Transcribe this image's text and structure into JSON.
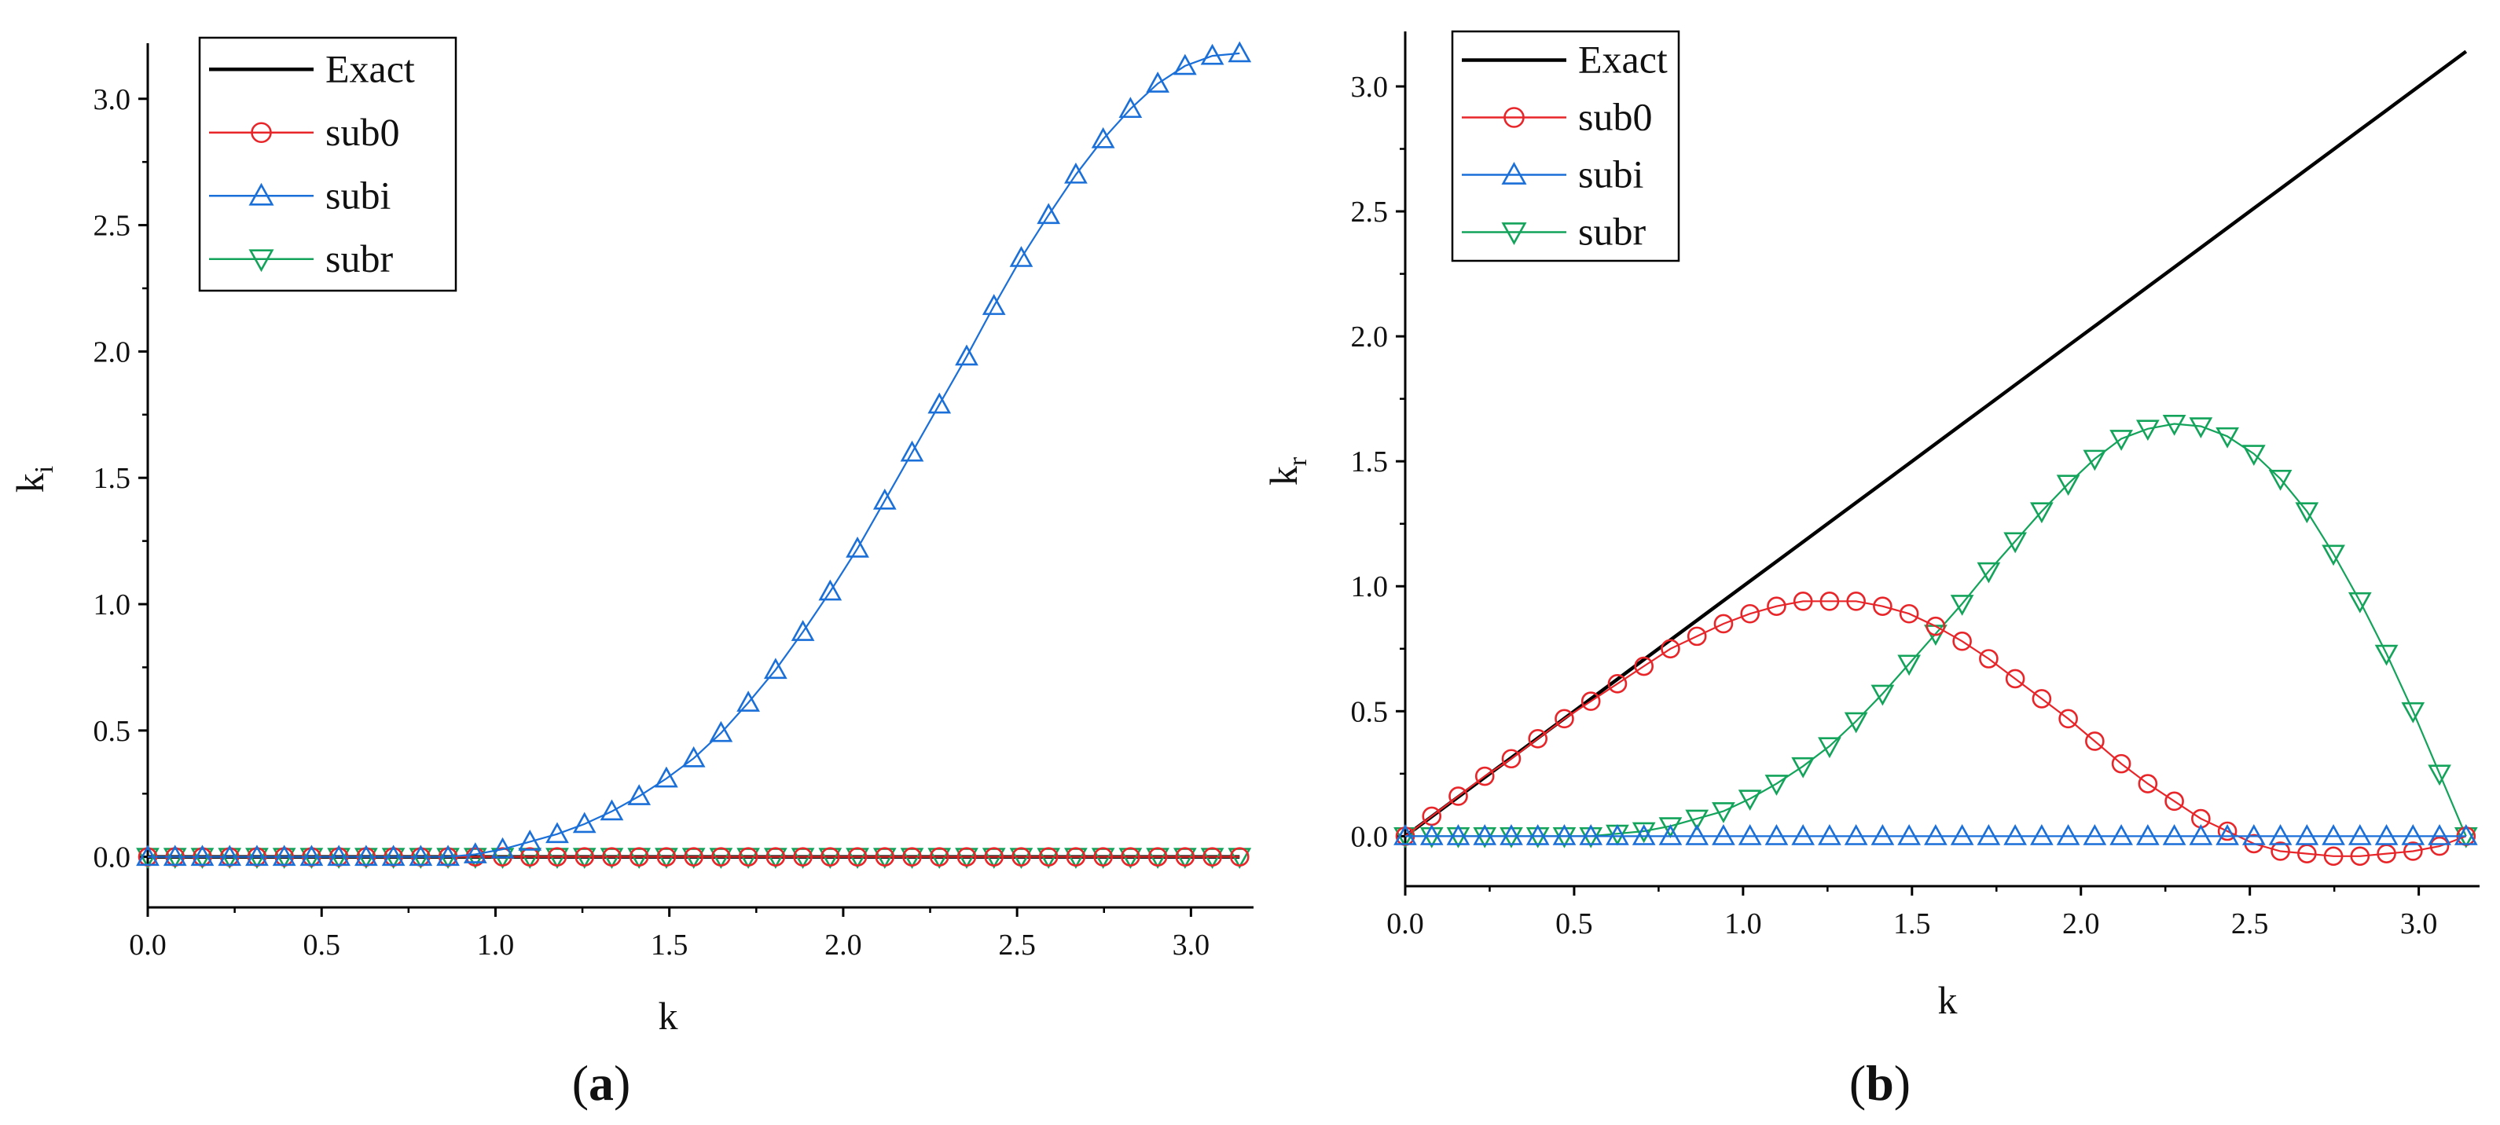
{
  "figure": {
    "colors": {
      "exact": "#000000",
      "sub0": "#e8262a",
      "subi": "#1a6fd8",
      "subr": "#13a35a"
    }
  },
  "chart_data": [
    {
      "type": "line",
      "panel_label": {
        "open": "(",
        "letter": "a",
        "close": ")"
      },
      "xlabel": "k",
      "ylabel": {
        "main": "k",
        "sub": "i"
      },
      "xlim": [
        0.0,
        3.18
      ],
      "ylim": [
        -0.2,
        3.22
      ],
      "xticks": [
        "0.0",
        "0.5",
        "1.0",
        "1.5",
        "2.0",
        "2.5",
        "3.0"
      ],
      "yticks": [
        "0.0",
        "0.5",
        "1.0",
        "1.5",
        "2.0",
        "2.5",
        "3.0"
      ],
      "legend": {
        "location": "top-left",
        "entries": [
          "Exact",
          "sub0",
          "subi",
          "subr"
        ]
      },
      "x": [
        0.0,
        0.0785,
        0.157,
        0.2355,
        0.314,
        0.3925,
        0.471,
        0.5495,
        0.628,
        0.7065,
        0.785,
        0.8635,
        0.942,
        1.0205,
        1.099,
        1.1775,
        1.256,
        1.3345,
        1.413,
        1.4915,
        1.57,
        1.6485,
        1.727,
        1.8055,
        1.884,
        1.9625,
        2.041,
        2.1195,
        2.198,
        2.2765,
        2.355,
        2.4335,
        2.512,
        2.5905,
        2.669,
        2.7475,
        2.826,
        2.9045,
        2.983,
        3.0615,
        3.14
      ],
      "series": [
        {
          "name": "Exact",
          "values": [
            0,
            0,
            0,
            0,
            0,
            0,
            0,
            0,
            0,
            0,
            0,
            0,
            0,
            0,
            0,
            0,
            0,
            0,
            0,
            0,
            0,
            0,
            0,
            0,
            0,
            0,
            0,
            0,
            0,
            0,
            0,
            0,
            0,
            0,
            0,
            0,
            0,
            0,
            0,
            0,
            0
          ]
        },
        {
          "name": "sub0",
          "values": [
            0,
            0,
            0,
            0,
            0,
            0,
            0,
            0,
            0,
            0,
            0,
            0,
            0,
            0,
            0,
            0,
            0,
            0,
            0,
            0,
            0,
            0,
            0,
            0,
            0,
            0,
            0,
            0,
            0,
            0,
            0,
            0,
            0,
            0,
            0,
            0,
            0,
            0,
            0,
            0,
            0
          ]
        },
        {
          "name": "subi",
          "values": [
            0.0,
            0.0,
            0.0,
            0.0,
            0.0,
            0.0,
            0.0,
            0.0,
            0.0,
            0.0,
            0.0,
            0.0,
            0.01,
            0.03,
            0.06,
            0.09,
            0.13,
            0.18,
            0.24,
            0.31,
            0.39,
            0.49,
            0.61,
            0.74,
            0.89,
            1.05,
            1.22,
            1.41,
            1.6,
            1.79,
            1.98,
            2.18,
            2.37,
            2.54,
            2.7,
            2.84,
            2.96,
            3.06,
            3.13,
            3.17,
            3.18
          ]
        },
        {
          "name": "subr",
          "values": [
            0,
            0,
            0,
            0,
            0,
            0,
            0,
            0,
            0,
            0,
            0,
            0,
            0,
            0,
            0,
            0,
            0,
            0,
            0,
            0,
            0,
            0,
            0,
            0,
            0,
            0,
            0,
            0,
            0,
            0,
            0,
            0,
            0,
            0,
            0,
            0,
            0,
            0,
            0,
            0,
            0
          ]
        }
      ]
    },
    {
      "type": "line",
      "panel_label": {
        "open": "(",
        "letter": "b",
        "close": ")"
      },
      "xlabel": "k",
      "ylabel": {
        "main": "k",
        "sub": "r"
      },
      "xlim": [
        0.0,
        3.18
      ],
      "ylim": [
        -0.2,
        3.22
      ],
      "xticks": [
        "0.0",
        "0.5",
        "1.0",
        "1.5",
        "2.0",
        "2.5",
        "3.0"
      ],
      "yticks": [
        "0.0",
        "0.5",
        "1.0",
        "1.5",
        "2.0",
        "2.5",
        "3.0"
      ],
      "legend": {
        "location": "top-left",
        "entries": [
          "Exact",
          "sub0",
          "subi",
          "subr"
        ]
      },
      "x": [
        0.0,
        0.0785,
        0.157,
        0.2355,
        0.314,
        0.3925,
        0.471,
        0.5495,
        0.628,
        0.7065,
        0.785,
        0.8635,
        0.942,
        1.0205,
        1.099,
        1.1775,
        1.256,
        1.3345,
        1.413,
        1.4915,
        1.57,
        1.6485,
        1.727,
        1.8055,
        1.884,
        1.9625,
        2.041,
        2.1195,
        2.198,
        2.2765,
        2.355,
        2.4335,
        2.512,
        2.5905,
        2.669,
        2.7475,
        2.826,
        2.9045,
        2.983,
        3.0615,
        3.14
      ],
      "series": [
        {
          "name": "Exact",
          "values": [
            0.0,
            0.0785,
            0.157,
            0.2355,
            0.314,
            0.3925,
            0.471,
            0.5495,
            0.628,
            0.7065,
            0.785,
            0.8635,
            0.942,
            1.0205,
            1.099,
            1.1775,
            1.256,
            1.3345,
            1.413,
            1.4915,
            1.57,
            1.6485,
            1.727,
            1.8055,
            1.884,
            1.9625,
            2.041,
            2.1195,
            2.198,
            2.2765,
            2.355,
            2.4335,
            2.512,
            2.5905,
            2.669,
            2.7475,
            2.826,
            2.9045,
            2.983,
            3.0615,
            3.14
          ]
        },
        {
          "name": "sub0",
          "values": [
            0.0,
            0.08,
            0.16,
            0.24,
            0.31,
            0.39,
            0.47,
            0.54,
            0.61,
            0.68,
            0.75,
            0.8,
            0.85,
            0.89,
            0.92,
            0.94,
            0.94,
            0.94,
            0.92,
            0.89,
            0.84,
            0.78,
            0.71,
            0.63,
            0.55,
            0.47,
            0.38,
            0.29,
            0.21,
            0.14,
            0.07,
            0.02,
            -0.03,
            -0.06,
            -0.07,
            -0.08,
            -0.08,
            -0.07,
            -0.06,
            -0.04,
            0.0
          ]
        },
        {
          "name": "subi",
          "values": [
            0,
            0,
            0,
            0,
            0,
            0,
            0,
            0,
            0,
            0,
            0,
            0,
            0,
            0,
            0,
            0,
            0,
            0,
            0,
            0,
            0,
            0,
            0,
            0,
            0,
            0,
            0,
            0,
            0,
            0,
            0,
            0,
            0,
            0,
            0,
            0,
            0,
            0,
            0,
            0,
            0
          ]
        },
        {
          "name": "subr",
          "values": [
            0.0,
            0.0,
            0.0,
            0.0,
            0.0,
            0.0,
            0.0,
            0.0,
            0.01,
            0.02,
            0.04,
            0.07,
            0.1,
            0.15,
            0.21,
            0.28,
            0.36,
            0.46,
            0.57,
            0.69,
            0.81,
            0.93,
            1.06,
            1.18,
            1.3,
            1.41,
            1.51,
            1.59,
            1.63,
            1.65,
            1.64,
            1.6,
            1.53,
            1.43,
            1.3,
            1.13,
            0.94,
            0.73,
            0.5,
            0.25,
            0.0
          ]
        }
      ]
    }
  ]
}
